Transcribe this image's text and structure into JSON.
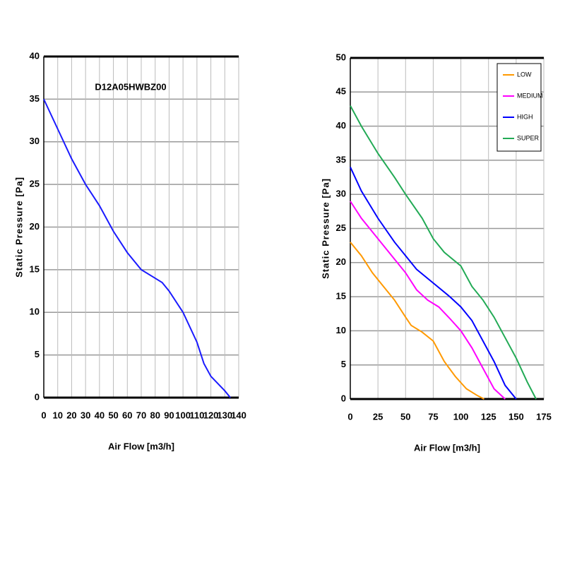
{
  "chart_data": [
    {
      "type": "line",
      "title": "D12A05HWBZ00",
      "x_label": "Air Flow [m3/h]",
      "y_label": "Static Pressure [Pa]",
      "xlim": [
        0,
        140
      ],
      "xticks": [
        0,
        10,
        20,
        30,
        40,
        50,
        60,
        70,
        80,
        90,
        100,
        110,
        120,
        130,
        140
      ],
      "ylim": [
        0,
        40
      ],
      "yticks": [
        0,
        5,
        10,
        15,
        20,
        25,
        30,
        35,
        40
      ],
      "grid": true,
      "series": [
        {
          "color": "#1a1aff",
          "x": [
            0,
            10,
            20,
            30,
            40,
            50,
            60,
            70,
            80,
            85,
            90,
            100,
            110,
            115,
            120,
            130,
            134
          ],
          "values": [
            35,
            31.5,
            28,
            25,
            22.5,
            19.5,
            17,
            15,
            14,
            13.5,
            12.5,
            10,
            6.5,
            4,
            2.5,
            0.8,
            0
          ]
        }
      ]
    },
    {
      "type": "line",
      "x_label": "Air Flow [m3/h]",
      "y_label": "Static Pressure [Pa]",
      "xlim": [
        0,
        175
      ],
      "xticks": [
        0,
        25,
        50,
        75,
        100,
        125,
        150,
        175
      ],
      "ylim": [
        0,
        50
      ],
      "yticks": [
        0,
        5,
        10,
        15,
        20,
        25,
        30,
        35,
        40,
        45,
        50
      ],
      "grid": true,
      "legend": "upper right",
      "series": [
        {
          "name": "LOW",
          "color": "#ff9900",
          "x": [
            0,
            10,
            20,
            30,
            40,
            50,
            55,
            65,
            75,
            85,
            95,
            105,
            115,
            121
          ],
          "values": [
            23,
            21,
            18.5,
            16.5,
            14.5,
            12,
            10.8,
            9.8,
            8.5,
            5.5,
            3.3,
            1.5,
            0.5,
            0
          ]
        },
        {
          "name": "MEDIUM",
          "color": "#ff00ff",
          "x": [
            0,
            10,
            25,
            40,
            50,
            60,
            70,
            80,
            90,
            100,
            110,
            120,
            130,
            140
          ],
          "values": [
            29,
            26.5,
            23.5,
            20.5,
            18.5,
            16,
            14.5,
            13.5,
            11.8,
            10,
            7.5,
            4.5,
            1.5,
            0
          ]
        },
        {
          "name": "HIGH",
          "color": "#0000ff",
          "x": [
            0,
            10,
            25,
            40,
            50,
            60,
            75,
            90,
            100,
            110,
            120,
            130,
            140,
            150
          ],
          "values": [
            34,
            30.5,
            26.5,
            23,
            21,
            19,
            17,
            15,
            13.5,
            11.5,
            8.5,
            5.5,
            2,
            0
          ]
        },
        {
          "name": "SUPER",
          "color": "#22aa55",
          "x": [
            0,
            10,
            25,
            40,
            50,
            65,
            75,
            85,
            100,
            110,
            120,
            130,
            140,
            150,
            160,
            168
          ],
          "values": [
            43,
            40,
            36,
            32.5,
            30,
            26.5,
            23.5,
            21.5,
            19.5,
            16.5,
            14.5,
            12,
            9,
            6,
            2.5,
            0
          ]
        }
      ]
    }
  ]
}
